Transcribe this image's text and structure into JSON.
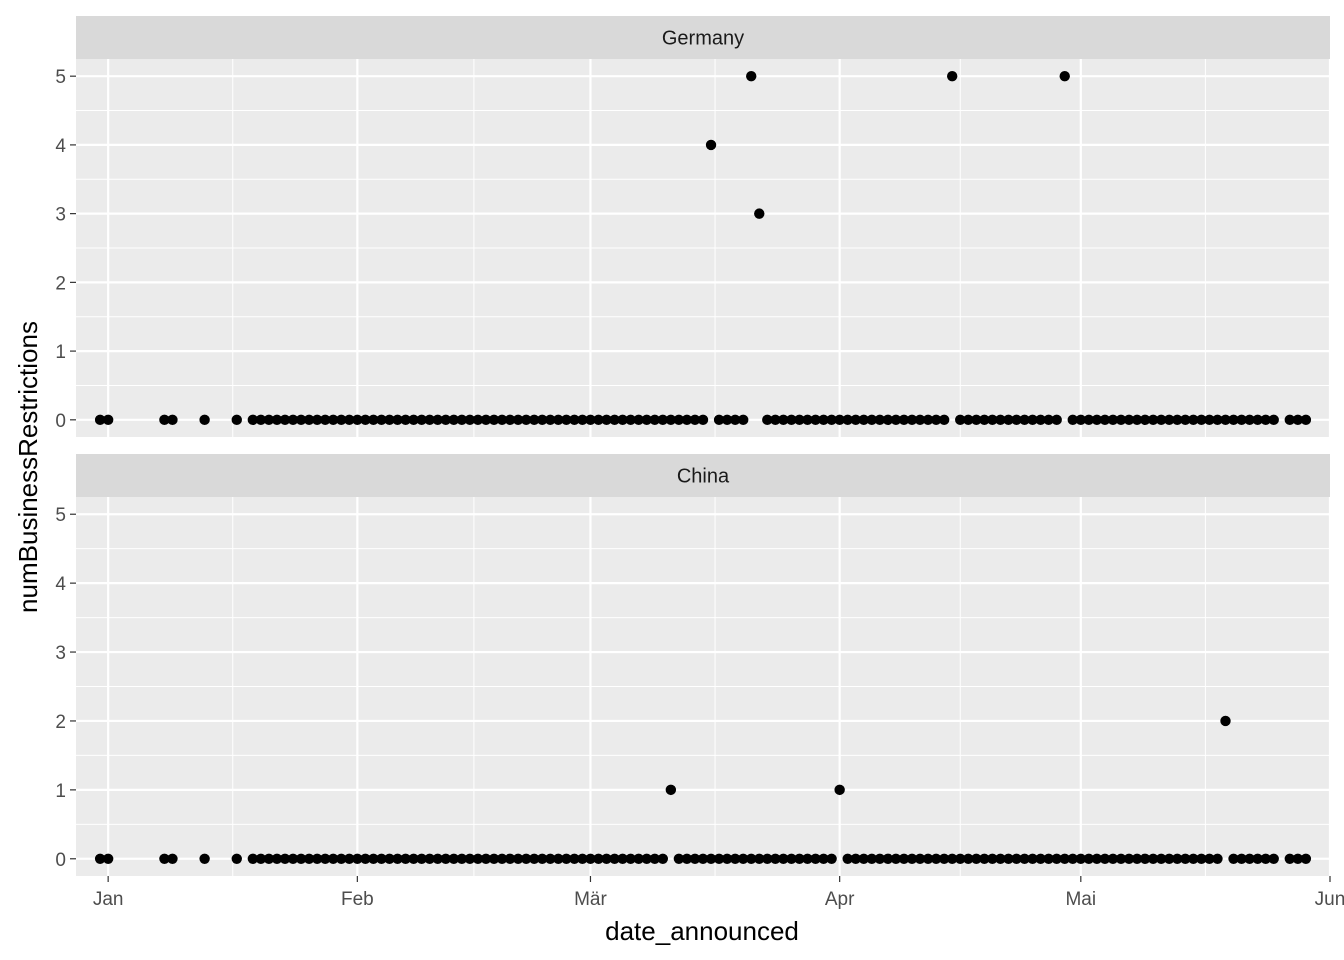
{
  "chart_data": {
    "type": "scatter",
    "xlabel": "date_announced",
    "ylabel": "numBusinessRestrictions",
    "xlim": [
      "2019-12-28",
      "2020-06-01"
    ],
    "ylim": [
      -0.25,
      5.25
    ],
    "y_ticks": [
      0,
      1,
      2,
      3,
      4,
      5
    ],
    "x_ticks": [
      {
        "date": "2020-01-01",
        "label": "Jan"
      },
      {
        "date": "2020-02-01",
        "label": "Feb"
      },
      {
        "date": "2020-03-01",
        "label": "Mär"
      },
      {
        "date": "2020-04-01",
        "label": "Apr"
      },
      {
        "date": "2020-05-01",
        "label": "Mai"
      },
      {
        "date": "2020-06-01",
        "label": "Jun"
      }
    ],
    "grid": true,
    "zero_dates": {
      "start": "2019-12-31",
      "end": "2020-05-29",
      "missing": [
        "2020-01-02",
        "2020-01-03",
        "2020-01-04",
        "2020-01-05",
        "2020-01-06",
        "2020-01-07",
        "2020-01-10",
        "2020-01-11",
        "2020-01-12",
        "2020-01-14",
        "2020-01-15",
        "2020-01-16",
        "2020-01-18",
        "2020-05-26"
      ]
    },
    "panels": [
      {
        "name": "Germany",
        "points": [
          {
            "date": "2020-03-16",
            "value": 4
          },
          {
            "date": "2020-03-21",
            "value": 5
          },
          {
            "date": "2020-03-22",
            "value": 3
          },
          {
            "date": "2020-04-15",
            "value": 5
          },
          {
            "date": "2020-04-29",
            "value": 5
          }
        ]
      },
      {
        "name": "China",
        "points": [
          {
            "date": "2020-03-11",
            "value": 1
          },
          {
            "date": "2020-04-01",
            "value": 1
          },
          {
            "date": "2020-05-19",
            "value": 2
          }
        ]
      }
    ]
  }
}
